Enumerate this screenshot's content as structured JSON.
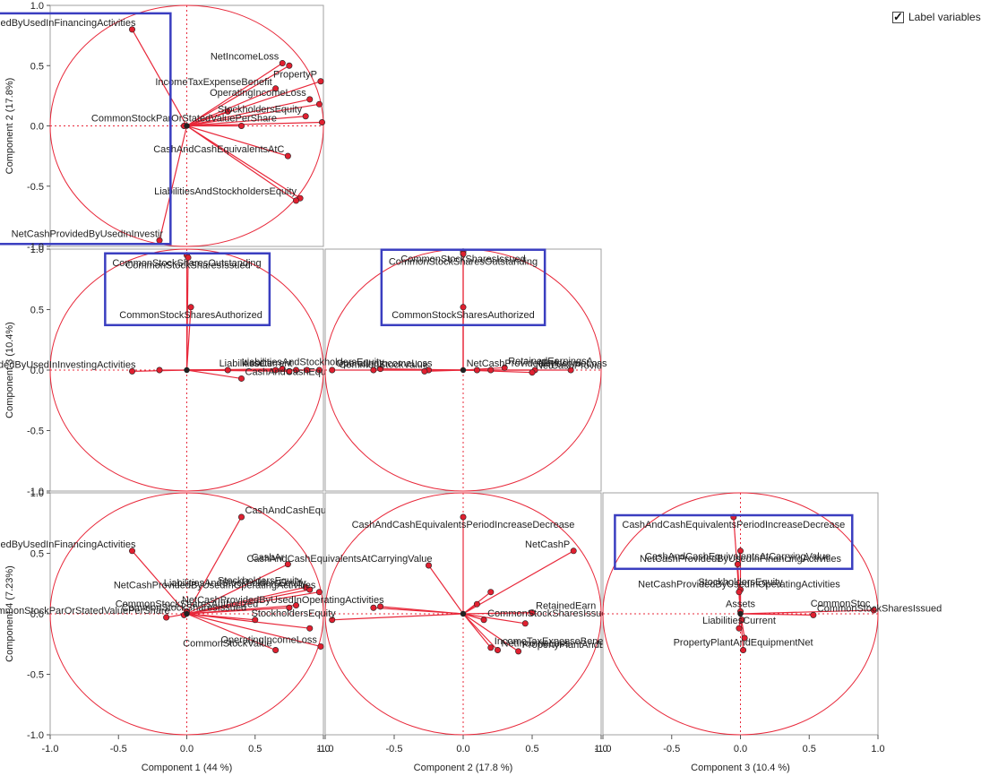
{
  "label_variables": {
    "label": "Label variables",
    "checked": true
  },
  "axis_titles": {
    "x": [
      "Component 1  (44 %)",
      "Component 2  (17.8 %)",
      "Component 3  (10.4 %)"
    ],
    "y": [
      "Component 2  (17.8%)",
      "Component 3  (10.4%)",
      "Component 4  (7.23%)"
    ]
  },
  "tick_labels": [
    "-1.0",
    "-0.5",
    "0.0",
    "0.5",
    "1.0"
  ],
  "colors": {
    "loading": "#e8283a",
    "circle": "#e8283a",
    "highlight": "#3a3ec0",
    "axis": "#999999"
  },
  "chart_data": [
    {
      "type": "scatter",
      "panel": "Component 2 vs Component 1",
      "x_axis": "Component 1",
      "y_axis": "Component 2",
      "xlim": [
        -1,
        1
      ],
      "ylim": [
        -1,
        1
      ],
      "points": [
        {
          "x": -0.4,
          "y": 0.8,
          "label": "NetCashProvidedByUsedInFinancingActivities",
          "highlight": true
        },
        {
          "x": 0.7,
          "y": 0.52,
          "label": "NetIncomeLoss"
        },
        {
          "x": 0.75,
          "y": 0.5,
          "label": ""
        },
        {
          "x": 0.65,
          "y": 0.31,
          "label": "IncomeTaxExpenseBenefit"
        },
        {
          "x": 0.98,
          "y": 0.37,
          "label": "PropertyP"
        },
        {
          "x": 0.9,
          "y": 0.22,
          "label": "OperatingIncomeLoss"
        },
        {
          "x": 0.97,
          "y": 0.18,
          "label": ""
        },
        {
          "x": 0.87,
          "y": 0.08,
          "label": "StockholdersEquity"
        },
        {
          "x": 0.3,
          "y": 0.12,
          "label": ""
        },
        {
          "x": 0.4,
          "y": 0.0,
          "label": ""
        },
        {
          "x": 0.99,
          "y": 0.03,
          "label": ""
        },
        {
          "x": -0.02,
          "y": 0.0,
          "label": "CommonStockParOrStatedValuePerShare"
        },
        {
          "x": 0.74,
          "y": -0.25,
          "label": "CashAndCashEquivalentsAtC"
        },
        {
          "x": 0.83,
          "y": -0.6,
          "label": "LiabilitiesAndStockholdersEquity"
        },
        {
          "x": 0.8,
          "y": -0.62,
          "label": ""
        },
        {
          "x": -0.2,
          "y": -0.95,
          "label": "NetCashProvidedByUsedInInvestir",
          "highlight": true
        }
      ]
    },
    {
      "type": "scatter",
      "panel": "Component 3 vs Component 1",
      "x_axis": "Component 1",
      "y_axis": "Component 3",
      "xlim": [
        -1,
        1
      ],
      "ylim": [
        -1,
        1
      ],
      "points": [
        {
          "x": 0.0,
          "y": 0.95,
          "label": "CommonStockSharesOutstanding",
          "highlight": true
        },
        {
          "x": 0.01,
          "y": 0.93,
          "label": "CommonStockSharesIssued",
          "highlight": true
        },
        {
          "x": 0.03,
          "y": 0.52,
          "label": "CommonStockSharesAuthorized",
          "highlight": true
        },
        {
          "x": -0.4,
          "y": -0.01,
          "label": "NetCashProvidedByUsedInInvestingActivities"
        },
        {
          "x": -0.2,
          "y": 0.0,
          "label": ""
        },
        {
          "x": 0.4,
          "y": -0.07,
          "label": "CashAndCashEquivalentsPeriodIncreaseDecrease"
        },
        {
          "x": 0.3,
          "y": 0.0,
          "label": ""
        },
        {
          "x": 0.65,
          "y": 0.0,
          "label": "Assets"
        },
        {
          "x": 0.7,
          "y": 0.01,
          "label": ""
        },
        {
          "x": 0.75,
          "y": -0.01,
          "label": ""
        },
        {
          "x": 0.8,
          "y": 0.0,
          "label": "LiabilitiesCurrent"
        },
        {
          "x": 0.88,
          "y": 0.0,
          "label": ""
        },
        {
          "x": 0.97,
          "y": 0.0,
          "label": ""
        }
      ]
    },
    {
      "type": "scatter",
      "panel": "Component 3 vs Component 2",
      "x_axis": "Component 2",
      "y_axis": "Component 3",
      "xlim": [
        -1,
        1
      ],
      "ylim": [
        -1,
        1
      ],
      "points": [
        {
          "x": 0.0,
          "y": 0.98,
          "label": "CommonStockSharesIssued",
          "highlight": true
        },
        {
          "x": 0.0,
          "y": 0.96,
          "label": "CommonStockSharesOutstanding",
          "highlight": true
        },
        {
          "x": 0.0,
          "y": 0.52,
          "label": "CommonStockSharesAuthorized",
          "highlight": true
        },
        {
          "x": -0.6,
          "y": 0.01,
          "label": "LiabilitiesAndStockholdersEquity"
        },
        {
          "x": -0.65,
          "y": 0.0,
          "label": ""
        },
        {
          "x": -0.95,
          "y": 0.0,
          "label": ""
        },
        {
          "x": -0.25,
          "y": 0.0,
          "label": "OperatingIncomeLoss"
        },
        {
          "x": -0.28,
          "y": -0.01,
          "label": "CommonStockValue"
        },
        {
          "x": 0.3,
          "y": 0.02,
          "label": "RetainedEarningsA"
        },
        {
          "x": 0.52,
          "y": 0.0,
          "label": "NetIncomeLoss"
        },
        {
          "x": 0.78,
          "y": 0.0,
          "label": "NetCashProvidedByUs"
        },
        {
          "x": 0.5,
          "y": -0.02,
          "label": "NetCashProvid"
        },
        {
          "x": 0.2,
          "y": 0.0,
          "label": ""
        },
        {
          "x": 0.1,
          "y": 0.0,
          "label": ""
        }
      ]
    },
    {
      "type": "scatter",
      "panel": "Component 4 vs Component 1",
      "x_axis": "Component 1",
      "y_axis": "Component 4",
      "xlim": [
        -1,
        1
      ],
      "ylim": [
        -1,
        1
      ],
      "points": [
        {
          "x": 0.4,
          "y": 0.8,
          "label": "CashAndCashEqu"
        },
        {
          "x": -0.4,
          "y": 0.52,
          "label": "NetCashProvidedByUsedInFinancingActivities"
        },
        {
          "x": 0.74,
          "y": 0.41,
          "label": "CashAr"
        },
        {
          "x": 0.87,
          "y": 0.22,
          "label": "StockholdersEquity"
        },
        {
          "x": 0.9,
          "y": 0.2,
          "label": "LiabilitiesAndStockholdersEquity"
        },
        {
          "x": 0.97,
          "y": 0.18,
          "label": "NetCashProvidedByUsedInOperatingActivities"
        },
        {
          "x": 0.8,
          "y": 0.07,
          "label": ""
        },
        {
          "x": 0.75,
          "y": 0.05,
          "label": ""
        },
        {
          "x": 0.0,
          "y": 0.02,
          "label": "CommonStockSharesAuthorized"
        },
        {
          "x": -0.02,
          "y": -0.01,
          "label": "CommonStockSharesIssued"
        },
        {
          "x": -0.15,
          "y": -0.03,
          "label": "CommonStockParOrStatedValuePerShare"
        },
        {
          "x": 0.5,
          "y": -0.05,
          "label": ""
        },
        {
          "x": 0.65,
          "y": -0.3,
          "label": "CommonStockValue"
        },
        {
          "x": 0.98,
          "y": -0.27,
          "label": "OperatingIncomeLoss"
        },
        {
          "x": 0.9,
          "y": -0.12,
          "label": ""
        }
      ]
    },
    {
      "type": "scatter",
      "panel": "Component 4 vs Component 2",
      "x_axis": "Component 2",
      "y_axis": "Component 4",
      "xlim": [
        -1,
        1
      ],
      "ylim": [
        -1,
        1
      ],
      "points": [
        {
          "x": 0.0,
          "y": 0.8,
          "label": "CashAndCashEquivalentsPeriodIncreaseDecrease"
        },
        {
          "x": 0.8,
          "y": 0.52,
          "label": "NetCashP"
        },
        {
          "x": -0.25,
          "y": 0.4,
          "label": "CashAndCashEquivalentsAtCarryingValue"
        },
        {
          "x": 0.2,
          "y": 0.18,
          "label": ""
        },
        {
          "x": 0.1,
          "y": 0.08,
          "label": ""
        },
        {
          "x": -0.6,
          "y": 0.06,
          "label": "NetCashProvidedByUsedInOperatingActivities"
        },
        {
          "x": -0.65,
          "y": 0.05,
          "label": ""
        },
        {
          "x": -0.95,
          "y": -0.05,
          "label": "StockholdersEquity"
        },
        {
          "x": 0.5,
          "y": 0.01,
          "label": "RetainedEarn"
        },
        {
          "x": 0.15,
          "y": -0.05,
          "label": "CommonStockSharesIssued"
        },
        {
          "x": 0.45,
          "y": -0.08,
          "label": ""
        },
        {
          "x": 0.25,
          "y": -0.3,
          "label": "NetIncomeLoss"
        },
        {
          "x": 0.4,
          "y": -0.31,
          "label": "PropertyPlantAndE"
        },
        {
          "x": 0.2,
          "y": -0.28,
          "label": "IncomeTaxExpenseBenefit"
        }
      ]
    },
    {
      "type": "scatter",
      "panel": "Component 4 vs Component 3",
      "x_axis": "Component 3",
      "y_axis": "Component 4",
      "xlim": [
        -1,
        1
      ],
      "ylim": [
        -1,
        1
      ],
      "points": [
        {
          "x": -0.05,
          "y": 0.8,
          "label": "CashAndCashEquivalentsPeriodIncreaseDecrease",
          "highlight": true
        },
        {
          "x": 0.0,
          "y": 0.52,
          "label": "NetCashProvidedByUsedInFinancingActivities",
          "highlight": true
        },
        {
          "x": -0.02,
          "y": 0.41,
          "label": "CashAndCashEquivalentsAtCarryingValue"
        },
        {
          "x": 0.0,
          "y": 0.2,
          "label": "StockholdersEquity"
        },
        {
          "x": -0.01,
          "y": 0.18,
          "label": "NetCashProvidedByUsedInOperatingActivities"
        },
        {
          "x": 0.0,
          "y": 0.02,
          "label": "Assets"
        },
        {
          "x": 0.53,
          "y": -0.01,
          "label": "CommonStockSharesIssued"
        },
        {
          "x": 0.97,
          "y": 0.03,
          "label": "CommonStoc"
        },
        {
          "x": -0.01,
          "y": -0.12,
          "label": "LiabilitiesCurrent"
        },
        {
          "x": 0.02,
          "y": -0.3,
          "label": "PropertyPlantAndEquipmentNet"
        },
        {
          "x": 0.01,
          "y": -0.05,
          "label": ""
        },
        {
          "x": 0.03,
          "y": -0.2,
          "label": ""
        }
      ]
    }
  ]
}
